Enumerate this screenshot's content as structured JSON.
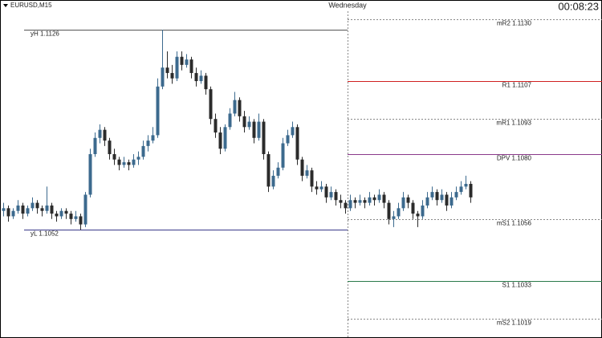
{
  "chart_data": {
    "type": "candlestick",
    "symbol": "EURUSD,M15",
    "day_label": "Wednesday",
    "timer": "00:08:23",
    "ylim": [
      1.1012,
      1.1137
    ],
    "bull_color": "#3c6a8e",
    "bear_color": "#2b2b2b",
    "previous_day_levels": [
      {
        "label": "yH 1.1126",
        "value": 1.1126,
        "color": "#555555"
      },
      {
        "label": "yL 1.1052",
        "value": 1.1052,
        "color": "#3a3a8a"
      }
    ],
    "pivot_levels": [
      {
        "label": "mR2 1.1130",
        "value": 1.113,
        "color": "#888888",
        "dashed": true
      },
      {
        "label": "R1 1.1107",
        "value": 1.1107,
        "color": "#d02020",
        "dashed": false
      },
      {
        "label": "mR1 1.1093",
        "value": 1.1093,
        "color": "#888888",
        "dashed": true
      },
      {
        "label": "DPV 1.1080",
        "value": 1.108,
        "color": "#8a3a8a",
        "dashed": false
      },
      {
        "label": "mS1 1.1056",
        "value": 1.1056,
        "color": "#888888",
        "dashed": true
      },
      {
        "label": "S1 1.1033",
        "value": 1.1033,
        "color": "#2a7a4a",
        "dashed": false
      },
      {
        "label": "mS2 1.1019",
        "value": 1.1019,
        "color": "#888888",
        "dashed": true
      }
    ],
    "ohlc": [
      [
        1.1059,
        1.1062,
        1.1057,
        1.106
      ],
      [
        1.106,
        1.1061,
        1.1055,
        1.1057
      ],
      [
        1.1057,
        1.106,
        1.1056,
        1.1059
      ],
      [
        1.1059,
        1.1063,
        1.1058,
        1.1061
      ],
      [
        1.1061,
        1.1062,
        1.1056,
        1.1058
      ],
      [
        1.1058,
        1.1061,
        1.1057,
        1.106
      ],
      [
        1.106,
        1.1064,
        1.1059,
        1.1062
      ],
      [
        1.1062,
        1.1063,
        1.1058,
        1.106
      ],
      [
        1.106,
        1.1061,
        1.1057,
        1.1059
      ],
      [
        1.1059,
        1.1068,
        1.1058,
        1.1061
      ],
      [
        1.1061,
        1.1062,
        1.1056,
        1.1058
      ],
      [
        1.1058,
        1.1059,
        1.1055,
        1.1057
      ],
      [
        1.1057,
        1.106,
        1.1056,
        1.1059
      ],
      [
        1.1059,
        1.106,
        1.1056,
        1.1058
      ],
      [
        1.1058,
        1.1059,
        1.1054,
        1.1056
      ],
      [
        1.1056,
        1.1059,
        1.1055,
        1.1057
      ],
      [
        1.1057,
        1.1058,
        1.1052,
        1.1054
      ],
      [
        1.1054,
        1.1066,
        1.1053,
        1.1065
      ],
      [
        1.1065,
        1.1082,
        1.1064,
        1.108
      ],
      [
        1.108,
        1.1088,
        1.1079,
        1.1086
      ],
      [
        1.1086,
        1.1091,
        1.1084,
        1.1089
      ],
      [
        1.1089,
        1.109,
        1.1083,
        1.1085
      ],
      [
        1.1085,
        1.1086,
        1.1078,
        1.108
      ],
      [
        1.108,
        1.1082,
        1.1076,
        1.1078
      ],
      [
        1.1078,
        1.1079,
        1.1074,
        1.1076
      ],
      [
        1.1076,
        1.1079,
        1.1075,
        1.1077
      ],
      [
        1.1077,
        1.1078,
        1.1074,
        1.1076
      ],
      [
        1.1076,
        1.108,
        1.1075,
        1.1078
      ],
      [
        1.1078,
        1.1081,
        1.1076,
        1.1079
      ],
      [
        1.1079,
        1.1085,
        1.1078,
        1.1083
      ],
      [
        1.1083,
        1.1087,
        1.1081,
        1.1085
      ],
      [
        1.1085,
        1.109,
        1.1084,
        1.1087
      ],
      [
        1.1087,
        1.1108,
        1.1086,
        1.1105
      ],
      [
        1.1105,
        1.1126,
        1.1104,
        1.1112
      ],
      [
        1.1112,
        1.1118,
        1.1108,
        1.111
      ],
      [
        1.111,
        1.1113,
        1.1106,
        1.1108
      ],
      [
        1.1108,
        1.1118,
        1.1107,
        1.1116
      ],
      [
        1.1116,
        1.1118,
        1.1111,
        1.1113
      ],
      [
        1.1113,
        1.1117,
        1.1112,
        1.1115
      ],
      [
        1.1115,
        1.1116,
        1.1108,
        1.111
      ],
      [
        1.111,
        1.1112,
        1.1105,
        1.1107
      ],
      [
        1.1107,
        1.1111,
        1.1106,
        1.1109
      ],
      [
        1.1109,
        1.111,
        1.1102,
        1.1104
      ],
      [
        1.1104,
        1.1105,
        1.1091,
        1.1093
      ],
      [
        1.1093,
        1.1095,
        1.1086,
        1.1088
      ],
      [
        1.1088,
        1.109,
        1.108,
        1.1082
      ],
      [
        1.1082,
        1.1091,
        1.1081,
        1.109
      ],
      [
        1.109,
        1.1097,
        1.1089,
        1.1095
      ],
      [
        1.1095,
        1.1103,
        1.1094,
        1.11
      ],
      [
        1.11,
        1.1101,
        1.1092,
        1.1094
      ],
      [
        1.1094,
        1.1096,
        1.1088,
        1.109
      ],
      [
        1.109,
        1.1094,
        1.1089,
        1.1092
      ],
      [
        1.1092,
        1.1093,
        1.1084,
        1.1086
      ],
      [
        1.1086,
        1.1095,
        1.1085,
        1.1092
      ],
      [
        1.1092,
        1.1093,
        1.1078,
        1.108
      ],
      [
        1.108,
        1.1081,
        1.1066,
        1.1068
      ],
      [
        1.1068,
        1.1074,
        1.1067,
        1.1072
      ],
      [
        1.1072,
        1.1077,
        1.1071,
        1.1075
      ],
      [
        1.1075,
        1.1086,
        1.1074,
        1.1084
      ],
      [
        1.1084,
        1.1089,
        1.1083,
        1.1087
      ],
      [
        1.1087,
        1.1092,
        1.1086,
        1.109
      ],
      [
        1.109,
        1.1091,
        1.1076,
        1.1078
      ],
      [
        1.1078,
        1.1079,
        1.107,
        1.1072
      ],
      [
        1.1072,
        1.1076,
        1.1071,
        1.1074
      ],
      [
        1.1074,
        1.1075,
        1.1066,
        1.1068
      ],
      [
        1.1068,
        1.107,
        1.1065,
        1.1067
      ],
      [
        1.1067,
        1.107,
        1.1066,
        1.1068
      ],
      [
        1.1068,
        1.1069,
        1.1062,
        1.1064
      ],
      [
        1.1064,
        1.1068,
        1.1063,
        1.1066
      ],
      [
        1.1066,
        1.1067,
        1.1061,
        1.1063
      ],
      [
        1.1063,
        1.1065,
        1.106,
        1.1062
      ],
      [
        1.1062,
        1.1063,
        1.1058,
        1.106
      ],
      [
        1.106,
        1.1065,
        1.1059,
        1.1063
      ],
      [
        1.1063,
        1.1064,
        1.106,
        1.1062
      ],
      [
        1.1062,
        1.1065,
        1.1061,
        1.1063
      ],
      [
        1.1063,
        1.1064,
        1.106,
        1.1062
      ],
      [
        1.1062,
        1.1066,
        1.1061,
        1.1064
      ],
      [
        1.1064,
        1.1065,
        1.1061,
        1.1063
      ],
      [
        1.1063,
        1.1067,
        1.1062,
        1.1065
      ],
      [
        1.1065,
        1.1066,
        1.106,
        1.1062
      ],
      [
        1.1062,
        1.1063,
        1.1054,
        1.1056
      ],
      [
        1.1056,
        1.1059,
        1.1053,
        1.1057
      ],
      [
        1.1057,
        1.1062,
        1.1056,
        1.106
      ],
      [
        1.106,
        1.1066,
        1.1059,
        1.1064
      ],
      [
        1.1064,
        1.1065,
        1.106,
        1.1062
      ],
      [
        1.1062,
        1.1063,
        1.1056,
        1.1058
      ],
      [
        1.1058,
        1.1059,
        1.1053,
        1.1057
      ],
      [
        1.1057,
        1.1063,
        1.1056,
        1.1061
      ],
      [
        1.1061,
        1.1066,
        1.106,
        1.1064
      ],
      [
        1.1064,
        1.1068,
        1.1063,
        1.1066
      ],
      [
        1.1066,
        1.1067,
        1.1061,
        1.1063
      ],
      [
        1.1063,
        1.1067,
        1.1062,
        1.1065
      ],
      [
        1.1065,
        1.1066,
        1.1059,
        1.1061
      ],
      [
        1.1061,
        1.1066,
        1.106,
        1.1064
      ],
      [
        1.1064,
        1.1068,
        1.1063,
        1.1066
      ],
      [
        1.1066,
        1.107,
        1.1065,
        1.1068
      ],
      [
        1.1068,
        1.1072,
        1.1067,
        1.1069
      ],
      [
        1.1069,
        1.107,
        1.1062,
        1.1064
      ]
    ]
  }
}
